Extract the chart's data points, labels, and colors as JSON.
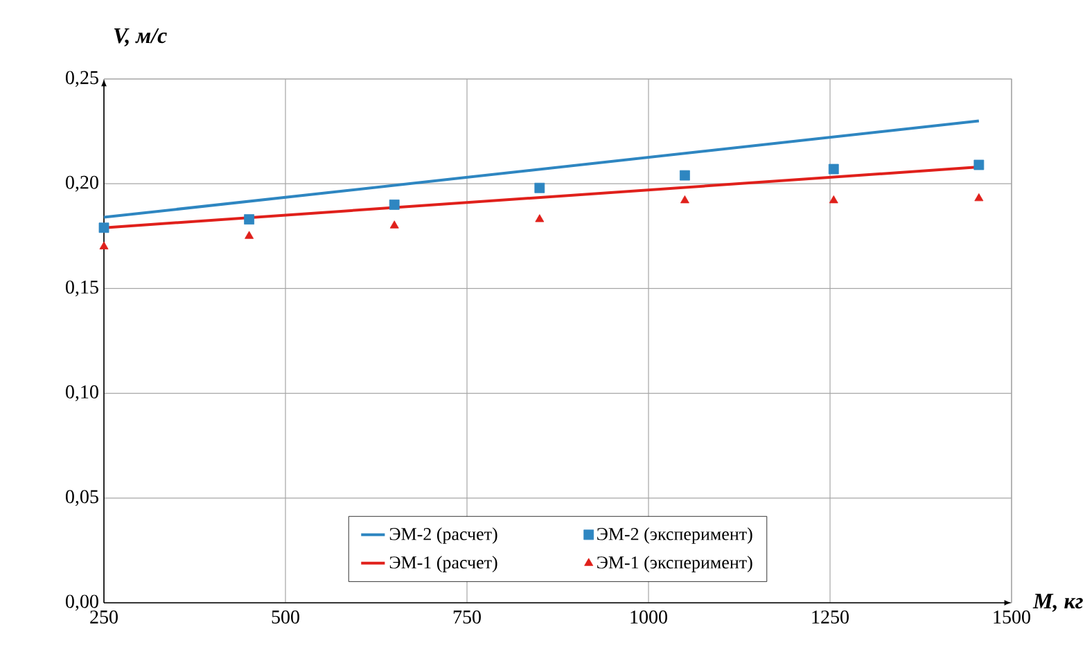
{
  "chart_data": {
    "type": "line",
    "xlabel": "M, кг",
    "ylabel": "V, м/с",
    "xlim": [
      250,
      1500
    ],
    "ylim": [
      0,
      0.25
    ],
    "xticks": [
      250,
      500,
      750,
      1000,
      1250,
      1500
    ],
    "yticks": [
      {
        "value": 0,
        "label": "0,00"
      },
      {
        "value": 0.05,
        "label": "0,05"
      },
      {
        "value": 0.1,
        "label": "0,10"
      },
      {
        "value": 0.15,
        "label": "0,15"
      },
      {
        "value": 0.2,
        "label": "0,20"
      },
      {
        "value": 0.25,
        "label": "0,25"
      }
    ],
    "grid": true,
    "legend": "bottom",
    "series": [
      {
        "name": "ЭМ-2 (расчет)",
        "color": "#2e86c1",
        "x": [
          250,
          1455
        ],
        "values": [
          0.184,
          0.23
        ],
        "marker": "none"
      },
      {
        "name": "ЭМ-2 (эксперимент)",
        "type": "scatter",
        "color": "#2e86c1",
        "x": [
          250,
          450,
          650,
          850,
          1050,
          1255,
          1455
        ],
        "values": [
          0.179,
          0.183,
          0.19,
          0.198,
          0.204,
          0.207,
          0.209
        ],
        "marker": "square"
      },
      {
        "name": "ЭМ-1 (расчет)",
        "color": "#e0201b",
        "x": [
          250,
          1455
        ],
        "values": [
          0.179,
          0.208
        ],
        "marker": "none"
      },
      {
        "name": "ЭМ-1 (эксперимент)",
        "type": "scatter",
        "color": "#e0201b",
        "x": [
          250,
          450,
          650,
          850,
          1050,
          1255,
          1455
        ],
        "values": [
          0.17,
          0.175,
          0.18,
          0.183,
          0.192,
          0.192,
          0.193
        ],
        "marker": "triangle"
      }
    ]
  }
}
